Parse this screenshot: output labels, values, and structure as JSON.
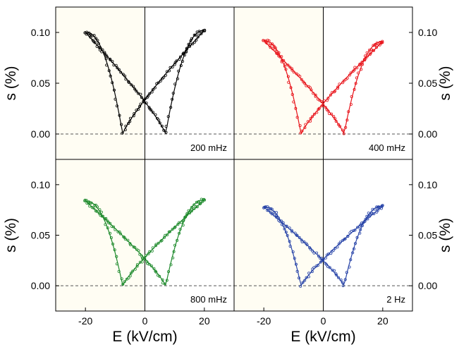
{
  "chart_data": [
    {
      "type": "scatter",
      "panel": "top-left",
      "annotation": "200 mHz",
      "color": "#000000",
      "ylabel": "s (%)",
      "xlabel": "",
      "xlim": [
        -30,
        30
      ],
      "ylim": [
        -0.025,
        0.125
      ],
      "yticks": [
        "0.00",
        "0.05",
        "0.10"
      ],
      "xticks": [],
      "ytick_side": "left",
      "extrema": {
        "s_max_left": 0.1,
        "s_max_right": 0.102,
        "coercive_left": -7.5,
        "coercive_right": 7.0,
        "e_max": 20
      },
      "grid": false
    },
    {
      "type": "scatter",
      "panel": "top-right",
      "annotation": "400 mHz",
      "color": "#e8141b",
      "ylabel": "s (%)",
      "xlabel": "",
      "xlim": [
        -30,
        30
      ],
      "ylim": [
        -0.025,
        0.125
      ],
      "yticks": [
        "0.00",
        "0.05",
        "0.10"
      ],
      "xticks": [],
      "ytick_side": "right",
      "extrema": {
        "s_max_left": 0.092,
        "s_max_right": 0.091,
        "coercive_left": -7.5,
        "coercive_right": 7.0,
        "e_max": 20
      },
      "grid": false
    },
    {
      "type": "scatter",
      "panel": "bottom-left",
      "annotation": "800 mHz",
      "color": "#1e8a2c",
      "ylabel": "s (%)",
      "xlabel": "E (kV/cm)",
      "xlim": [
        -30,
        30
      ],
      "ylim": [
        -0.025,
        0.125
      ],
      "yticks": [
        "0.00",
        "0.05",
        "0.10"
      ],
      "xticks": [
        "-20",
        "0",
        "20"
      ],
      "ytick_side": "left",
      "extrema": {
        "s_max_left": 0.084,
        "s_max_right": 0.085,
        "coercive_left": -7.5,
        "coercive_right": 7.0,
        "e_max": 20
      },
      "grid": false
    },
    {
      "type": "scatter",
      "panel": "bottom-right",
      "annotation": "2 Hz",
      "color": "#2844a8",
      "ylabel": "s (%)",
      "xlabel": "E (kV/cm)",
      "xlim": [
        -30,
        30
      ],
      "ylim": [
        -0.025,
        0.125
      ],
      "yticks": [
        "0.00",
        "0.05",
        "0.10"
      ],
      "xticks": [
        "-20",
        "0",
        "20"
      ],
      "ytick_side": "right",
      "extrema": {
        "s_max_left": 0.078,
        "s_max_right": 0.079,
        "coercive_left": -7.5,
        "coercive_right": 7.0,
        "e_max": 20
      },
      "grid": false
    }
  ],
  "colors": {
    "panel_bg": "#fffdf3",
    "frame": "#000000",
    "dashed_zero": "#555555"
  }
}
